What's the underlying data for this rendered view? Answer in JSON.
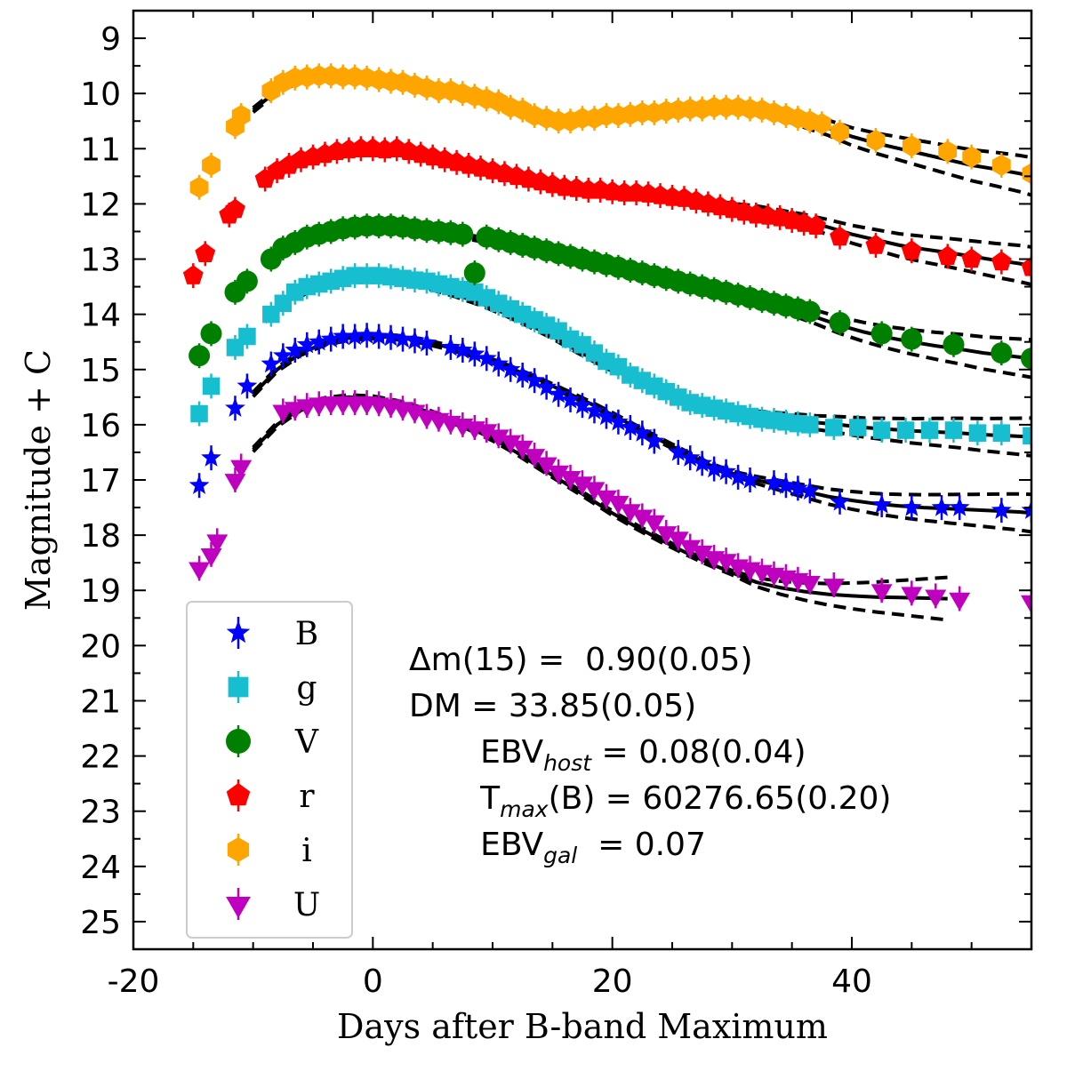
{
  "chart_data": {
    "type": "scatter",
    "title": "",
    "xlabel": "Days after B-band Maximum",
    "ylabel": "Magnitude + C",
    "xlim": [
      -20,
      55
    ],
    "ylim": [
      25.5,
      8.5
    ],
    "y_inverted": true,
    "grid": false,
    "legend_position": "lower-left",
    "x_ticks": [
      "-20",
      "0",
      "20",
      "40"
    ],
    "y_ticks": [
      "9",
      "10",
      "11",
      "12",
      "13",
      "14",
      "15",
      "16",
      "17",
      "18",
      "19",
      "20",
      "21",
      "22",
      "23",
      "24",
      "25"
    ],
    "series": [
      {
        "name": "B",
        "marker": "star",
        "color": "#0000ff",
        "x": [
          -14.5,
          -13.5,
          -11.5,
          -10.5,
          -8.5,
          -7.5,
          -6.5,
          -5.5,
          -4.5,
          -3.5,
          -2.5,
          -1.5,
          -0.5,
          0.5,
          1.5,
          2.5,
          3.5,
          4.5,
          6.5,
          7.5,
          8.5,
          9.5,
          10.5,
          11.5,
          12.5,
          13.5,
          14.5,
          15.5,
          16.5,
          17.5,
          18.5,
          19.5,
          20.5,
          21.5,
          22.5,
          23.5,
          25.5,
          26.5,
          27.5,
          28.5,
          29.5,
          30.5,
          31.5,
          33.5,
          34.5,
          35.5,
          36.5,
          39,
          42.5,
          45,
          47.5,
          49,
          52.5,
          55
        ],
        "y": [
          17.1,
          16.6,
          15.7,
          15.3,
          14.9,
          14.75,
          14.65,
          14.55,
          14.5,
          14.45,
          14.4,
          14.4,
          14.38,
          14.4,
          14.42,
          14.45,
          14.48,
          14.52,
          14.6,
          14.65,
          14.72,
          14.8,
          14.9,
          15,
          15.1,
          15.2,
          15.32,
          15.45,
          15.55,
          15.65,
          15.75,
          15.85,
          15.95,
          16.05,
          16.15,
          16.3,
          16.5,
          16.6,
          16.7,
          16.8,
          16.85,
          16.95,
          17.0,
          17.05,
          17.1,
          17.15,
          17.2,
          17.4,
          17.45,
          17.5,
          17.5,
          17.5,
          17.55,
          17.55
        ]
      },
      {
        "name": "g",
        "marker": "square",
        "color": "#17becf",
        "x": [
          -14.5,
          -13.5,
          -11.5,
          -10.5,
          -8.5,
          -7.5,
          -6.5,
          -5.5,
          -4.5,
          -3.5,
          -2.5,
          -1.5,
          -0.5,
          0.5,
          1.5,
          2.5,
          3.5,
          4.5,
          5.5,
          6.5,
          7.5,
          8.5,
          9.5,
          10.5,
          11.5,
          12.5,
          13.5,
          14.5,
          15.5,
          16.5,
          17.5,
          18.5,
          19.5,
          20.5,
          21.5,
          22.5,
          23.5,
          24.5,
          25.5,
          26.5,
          27.5,
          28.5,
          29.5,
          30.5,
          31.5,
          32.5,
          33.5,
          34.5,
          35.5,
          36.5,
          38.5,
          40.5,
          42.5,
          44.5,
          46.5,
          48.5,
          50.5,
          52.5,
          55
        ],
        "y": [
          15.8,
          15.3,
          14.6,
          14.4,
          14.0,
          13.8,
          13.6,
          13.5,
          13.45,
          13.4,
          13.35,
          13.3,
          13.3,
          13.3,
          13.32,
          13.35,
          13.38,
          13.4,
          13.45,
          13.5,
          13.55,
          13.6,
          13.7,
          13.8,
          13.9,
          14.0,
          14.1,
          14.2,
          14.3,
          14.45,
          14.55,
          14.7,
          14.85,
          14.95,
          15.1,
          15.2,
          15.3,
          15.4,
          15.5,
          15.6,
          15.65,
          15.7,
          15.75,
          15.8,
          15.85,
          15.9,
          15.92,
          15.95,
          15.98,
          16.0,
          16.05,
          16.05,
          16.1,
          16.1,
          16.1,
          16.1,
          16.15,
          16.15,
          16.2
        ]
      },
      {
        "name": "V",
        "marker": "circle",
        "color": "#008000",
        "x": [
          -14.5,
          -13.5,
          -11.5,
          -10.5,
          -8.5,
          -7.5,
          -6.5,
          -5.5,
          -4.5,
          -3.5,
          -2.5,
          -1.5,
          -0.5,
          0.5,
          1.5,
          2.5,
          3.5,
          4.5,
          5.5,
          6.5,
          7.5,
          8.5,
          9.5,
          10.5,
          11.5,
          12.5,
          13.5,
          14.5,
          15.5,
          16.5,
          17.5,
          18.5,
          19.5,
          20.5,
          21.5,
          22.5,
          23.5,
          24.5,
          25.5,
          26.5,
          27.5,
          28.5,
          29.5,
          30.5,
          31.5,
          32.5,
          33.5,
          34.5,
          35.5,
          36.5,
          39,
          42.5,
          45,
          48.5,
          52.5,
          55
        ],
        "y": [
          14.75,
          14.35,
          13.6,
          13.4,
          13.0,
          12.8,
          12.7,
          12.6,
          12.55,
          12.5,
          12.45,
          12.42,
          12.4,
          12.4,
          12.4,
          12.42,
          12.45,
          12.48,
          12.5,
          12.52,
          12.55,
          13.25,
          12.6,
          12.65,
          12.7,
          12.75,
          12.8,
          12.85,
          12.9,
          12.95,
          13.0,
          13.05,
          13.1,
          13.15,
          13.2,
          13.25,
          13.3,
          13.35,
          13.4,
          13.45,
          13.5,
          13.55,
          13.6,
          13.65,
          13.7,
          13.75,
          13.8,
          13.85,
          13.9,
          13.95,
          14.15,
          14.35,
          14.45,
          14.55,
          14.7,
          14.8
        ]
      },
      {
        "name": "r",
        "marker": "pentagon",
        "color": "#ff0000",
        "x": [
          -15,
          -14,
          -12,
          -11.5,
          -9,
          -8,
          -7,
          -6,
          -5,
          -4,
          -3,
          -2,
          -1,
          0,
          1,
          2,
          3,
          4,
          5,
          6,
          7,
          8,
          9,
          10,
          11,
          12,
          13,
          14,
          15,
          16,
          17,
          18,
          19,
          20,
          21,
          22,
          23,
          24,
          25,
          26,
          27,
          28,
          29,
          30,
          31,
          32,
          33,
          34,
          35,
          36,
          37,
          39,
          42,
          45,
          48,
          50,
          52.5,
          55
        ],
        "y": [
          13.3,
          12.9,
          12.2,
          12.1,
          11.55,
          11.4,
          11.3,
          11.2,
          11.15,
          11.1,
          11.05,
          11.02,
          11.0,
          11.0,
          11.02,
          11.0,
          11.05,
          11.1,
          11.15,
          11.2,
          11.25,
          11.3,
          11.35,
          11.4,
          11.45,
          11.5,
          11.55,
          11.6,
          11.65,
          11.7,
          11.72,
          11.75,
          11.75,
          11.78,
          11.8,
          11.8,
          11.82,
          11.85,
          11.88,
          11.9,
          11.95,
          12.0,
          12.05,
          12.1,
          12.15,
          12.2,
          12.22,
          12.25,
          12.3,
          12.35,
          12.4,
          12.6,
          12.75,
          12.85,
          12.95,
          13.0,
          13.05,
          13.15
        ]
      },
      {
        "name": "i",
        "marker": "hexagon",
        "color": "#ffa500",
        "x": [
          -14.5,
          -13.5,
          -11.5,
          -11,
          -8.5,
          -7.5,
          -6.5,
          -5.5,
          -4.5,
          -3.5,
          -2.5,
          -1.5,
          -0.5,
          0.5,
          1.5,
          2.5,
          3.5,
          4.5,
          5.5,
          6.5,
          7.5,
          8.5,
          9.5,
          10.5,
          11.5,
          12.5,
          13.5,
          14.5,
          15.5,
          16.5,
          17.5,
          18.5,
          19.5,
          20.5,
          21.5,
          22.5,
          23.5,
          24.5,
          25.5,
          26.5,
          27.5,
          28.5,
          29.5,
          30.5,
          31.5,
          32.5,
          33.5,
          34.5,
          35.5,
          36.5,
          37.5,
          39,
          42,
          45,
          48,
          50,
          52.5,
          55
        ],
        "y": [
          11.7,
          11.3,
          10.6,
          10.4,
          9.95,
          9.8,
          9.72,
          9.7,
          9.68,
          9.68,
          9.7,
          9.7,
          9.72,
          9.75,
          9.78,
          9.8,
          9.85,
          9.9,
          9.95,
          9.95,
          10.0,
          10.05,
          10.1,
          10.15,
          10.25,
          10.3,
          10.4,
          10.45,
          10.5,
          10.5,
          10.45,
          10.45,
          10.4,
          10.4,
          10.38,
          10.35,
          10.35,
          10.32,
          10.3,
          10.28,
          10.28,
          10.25,
          10.25,
          10.25,
          10.28,
          10.3,
          10.35,
          10.4,
          10.45,
          10.5,
          10.55,
          10.7,
          10.85,
          10.95,
          11.05,
          11.15,
          11.3,
          11.45
        ]
      },
      {
        "name": "U",
        "marker": "triangle_down",
        "color": "#bf00bf",
        "x": [
          -14.5,
          -13.5,
          -13,
          -11.5,
          -11,
          -7.5,
          -6.5,
          -5.5,
          -4.5,
          -3.5,
          -2.5,
          -1.5,
          -0.5,
          0.5,
          1.5,
          2.5,
          3.5,
          4.5,
          5.5,
          6.5,
          7.5,
          8.5,
          9.5,
          10.5,
          11.5,
          12.5,
          13.5,
          14.5,
          15.5,
          16.5,
          17.5,
          18.5,
          19.5,
          20.5,
          21.5,
          22.5,
          23.5,
          24.5,
          25.5,
          26.5,
          27.5,
          28.5,
          29.5,
          30.5,
          31.5,
          32.5,
          33.5,
          34.5,
          35.5,
          36.5,
          38.5,
          42.5,
          45,
          47,
          49,
          55
        ],
        "y": [
          18.6,
          18.35,
          18.1,
          17.0,
          16.75,
          15.75,
          15.7,
          15.65,
          15.62,
          15.6,
          15.6,
          15.6,
          15.6,
          15.62,
          15.65,
          15.7,
          15.75,
          15.85,
          15.9,
          15.95,
          16.0,
          16.05,
          16.1,
          16.2,
          16.3,
          16.4,
          16.55,
          16.7,
          16.85,
          16.95,
          17.05,
          17.15,
          17.3,
          17.4,
          17.55,
          17.65,
          17.75,
          17.95,
          18.05,
          18.2,
          18.3,
          18.4,
          18.45,
          18.55,
          18.6,
          18.65,
          18.7,
          18.75,
          18.8,
          18.85,
          18.9,
          19.0,
          19.05,
          19.1,
          19.15,
          19.2
        ]
      }
    ],
    "fits": [
      {
        "band": "i",
        "x": [
          -10,
          -8,
          -6,
          -4,
          -2,
          0,
          2,
          4,
          6,
          8,
          10,
          12,
          14,
          16,
          18,
          20,
          22,
          24,
          26,
          28,
          30,
          32,
          34,
          36,
          38,
          40,
          42,
          44,
          46,
          48,
          50,
          52,
          54,
          55
        ],
        "y": [
          10.3,
          9.95,
          9.75,
          9.68,
          9.66,
          9.7,
          9.76,
          9.84,
          9.92,
          10.0,
          10.1,
          10.25,
          10.4,
          10.48,
          10.47,
          10.42,
          10.37,
          10.33,
          10.29,
          10.27,
          10.27,
          10.3,
          10.38,
          10.5,
          10.62,
          10.78,
          10.9,
          11.0,
          11.1,
          11.2,
          11.3,
          11.37,
          11.45,
          11.5
        ]
      },
      {
        "band": "r",
        "x": [
          -8,
          -6,
          -4,
          -2,
          0,
          2,
          4,
          6,
          8,
          10,
          12,
          14,
          16,
          18,
          20,
          22,
          24,
          26,
          28,
          30,
          32,
          34,
          36,
          38,
          40,
          42,
          44,
          46,
          48,
          50,
          52,
          54,
          55
        ],
        "y": [
          11.45,
          11.25,
          11.13,
          11.05,
          11.02,
          11.03,
          11.08,
          11.17,
          11.28,
          11.38,
          11.48,
          11.58,
          11.68,
          11.73,
          11.76,
          11.78,
          11.82,
          11.88,
          11.95,
          12.03,
          12.1,
          12.2,
          12.3,
          12.42,
          12.55,
          12.65,
          12.75,
          12.82,
          12.88,
          12.95,
          13.02,
          13.08,
          13.12
        ]
      },
      {
        "band": "V",
        "x": [
          -9,
          -7,
          -5,
          -3,
          -1,
          1,
          3,
          5,
          7,
          9,
          11,
          13,
          15,
          17,
          19,
          21,
          23,
          25,
          27,
          29,
          31,
          33,
          35,
          37,
          39,
          41,
          43,
          45,
          47,
          49,
          51,
          53,
          55
        ],
        "y": [
          13.05,
          12.75,
          12.58,
          12.5,
          12.45,
          12.45,
          12.47,
          12.5,
          12.56,
          12.64,
          12.72,
          12.82,
          12.92,
          13.02,
          13.12,
          13.22,
          13.32,
          13.42,
          13.52,
          13.62,
          13.72,
          13.82,
          13.92,
          14.05,
          14.2,
          14.32,
          14.42,
          14.5,
          14.57,
          14.63,
          14.7,
          14.75,
          14.8
        ]
      },
      {
        "band": "g",
        "x": [
          -9,
          -7,
          -5,
          -3,
          -1,
          1,
          3,
          5,
          7,
          9,
          11,
          13,
          15,
          17,
          19,
          21,
          23,
          25,
          27,
          29,
          31,
          33,
          35,
          37,
          39,
          41,
          43,
          45,
          47,
          49,
          51,
          53,
          55
        ],
        "y": [
          14.1,
          13.75,
          13.52,
          13.4,
          13.35,
          13.36,
          13.42,
          13.52,
          13.65,
          13.8,
          13.98,
          14.18,
          14.4,
          14.65,
          14.88,
          15.1,
          15.3,
          15.46,
          15.6,
          15.7,
          15.78,
          15.85,
          15.9,
          15.96,
          16.0,
          16.05,
          16.08,
          16.11,
          16.13,
          16.15,
          16.18,
          16.2,
          16.22
        ]
      },
      {
        "band": "B",
        "x": [
          -10,
          -8,
          -6,
          -4,
          -2,
          0,
          2,
          4,
          6,
          8,
          10,
          12,
          14,
          16,
          18,
          20,
          22,
          24,
          26,
          28,
          30,
          32,
          34,
          36,
          38,
          40,
          42,
          44,
          46,
          48,
          50,
          52,
          54,
          55
        ],
        "y": [
          15.45,
          15.0,
          14.7,
          14.52,
          14.43,
          14.4,
          14.42,
          14.48,
          14.58,
          14.7,
          14.85,
          15.02,
          15.2,
          15.4,
          15.6,
          15.82,
          16.05,
          16.28,
          16.5,
          16.72,
          16.88,
          17.0,
          17.1,
          17.2,
          17.3,
          17.37,
          17.43,
          17.47,
          17.5,
          17.52,
          17.54,
          17.56,
          17.58,
          17.6
        ]
      },
      {
        "band": "U",
        "x": [
          -10,
          -8,
          -6,
          -4,
          -2,
          0,
          2,
          4,
          6,
          8,
          10,
          12,
          14,
          16,
          18,
          20,
          22,
          24,
          26,
          28,
          30,
          32,
          34,
          36,
          38,
          40,
          42,
          44,
          46,
          48
        ],
        "y": [
          16.45,
          16.0,
          15.7,
          15.55,
          15.5,
          15.52,
          15.6,
          15.72,
          15.88,
          16.05,
          16.25,
          16.5,
          16.78,
          17.05,
          17.32,
          17.6,
          17.85,
          18.08,
          18.3,
          18.5,
          18.68,
          18.85,
          18.95,
          19.02,
          19.07,
          19.1,
          19.12,
          19.13,
          19.14,
          19.15
        ]
      }
    ],
    "annotations": {
      "dm15": "Δm(15) =  0.90(0.05)",
      "dm": "DM = 33.85(0.05)",
      "ebv_host_pre": "EBV",
      "ebv_host_sub": "host",
      "ebv_host_post": " = 0.08(0.04)",
      "tmax_pre": "T",
      "tmax_sub": "max",
      "tmax_post": "(B) = 60276.65(0.20)",
      "ebv_gal_pre": "EBV",
      "ebv_gal_sub": "gal",
      "ebv_gal_post": "  = 0.07"
    },
    "legend": [
      {
        "label": "B",
        "marker": "star",
        "color": "#0000ff"
      },
      {
        "label": "g",
        "marker": "square",
        "color": "#17becf"
      },
      {
        "label": "V",
        "marker": "circle",
        "color": "#008000"
      },
      {
        "label": "r",
        "marker": "pentagon",
        "color": "#ff0000"
      },
      {
        "label": "i",
        "marker": "hexagon",
        "color": "#ffa500"
      },
      {
        "label": "U",
        "marker": "triangle_down",
        "color": "#bf00bf"
      }
    ]
  }
}
